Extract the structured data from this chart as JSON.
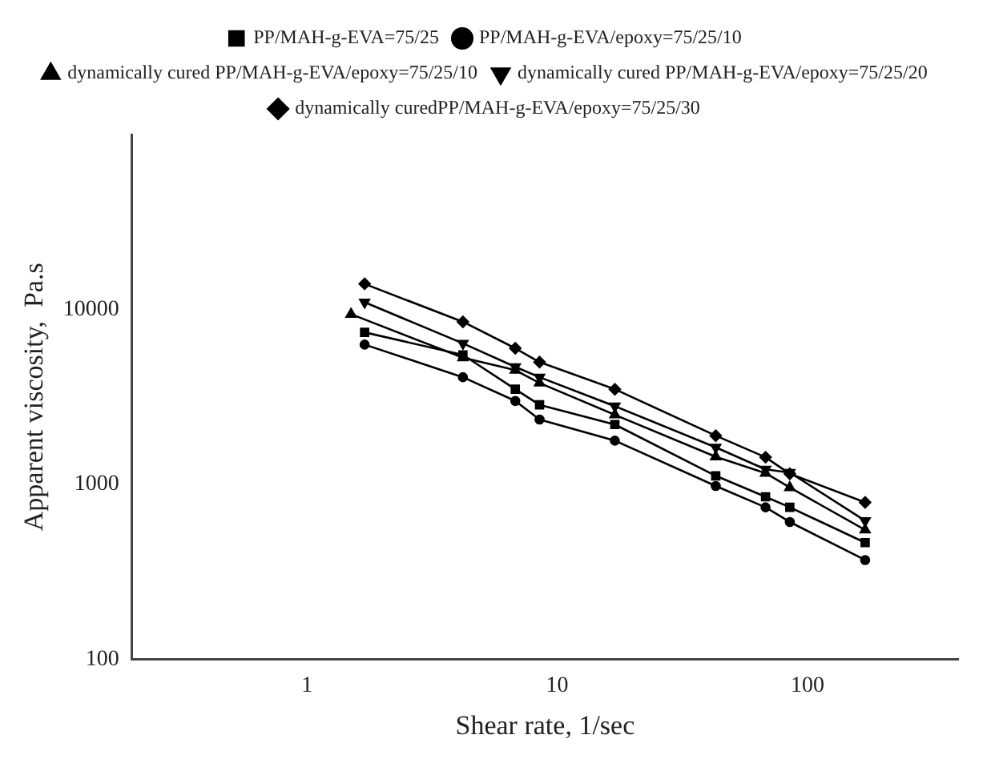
{
  "chart_data": {
    "type": "line",
    "xlabel": "Shear rate, 1/sec",
    "ylabel": "Apparent viscosity,  Pa.s",
    "log": "xy",
    "grid": false,
    "legend": "top",
    "line_style": "solid",
    "xlim": [
      0.2,
      400
    ],
    "xticks": [
      1,
      10,
      100
    ],
    "ylim": [
      100,
      100000
    ],
    "yticks": [
      100,
      1000,
      10000
    ],
    "series": [
      {
        "name": "PP/MAH-g-EVA=75/25",
        "color": "#000000",
        "marker": "square",
        "x": [
          1.7,
          4.2,
          6.8,
          8.5,
          17,
          43,
          68,
          85,
          170
        ],
        "values": [
          7400,
          5500,
          3500,
          2850,
          2200,
          1120,
          850,
          740,
          465
        ]
      },
      {
        "name": "PP/MAH-g-EVA/epoxy=75/25/10",
        "color": "#000000",
        "marker": "circle",
        "x": [
          1.7,
          4.2,
          6.8,
          8.5,
          17,
          43,
          68,
          85,
          170
        ],
        "values": [
          6300,
          4100,
          3000,
          2350,
          1780,
          980,
          740,
          610,
          370
        ]
      },
      {
        "name": "dynamically cured PP/MAH-g-EVA/epoxy=75/25/10",
        "color": "#000000",
        "marker": "triangle",
        "x": [
          1.5,
          4.2,
          6.8,
          8.5,
          17,
          43,
          68,
          85,
          170
        ],
        "values": [
          9400,
          5300,
          4500,
          3800,
          2500,
          1440,
          1160,
          960,
          550
        ]
      },
      {
        "name": "dynamically cured PP/MAH-g-EVA/epoxy=75/25/20",
        "color": "#000000",
        "marker": "triangle-down",
        "x": [
          1.7,
          4.2,
          6.8,
          8.5,
          17,
          43,
          68,
          85,
          170
        ],
        "values": [
          11000,
          6400,
          4700,
          4100,
          2800,
          1630,
          1220,
          1170,
          620
        ]
      },
      {
        "name": "dynamically curedPP/MAH-g-EVA/epoxy=75/25/30",
        "color": "#000000",
        "marker": "diamond",
        "x": [
          1.7,
          4.2,
          6.8,
          8.5,
          17,
          43,
          68,
          85,
          170
        ],
        "values": [
          14000,
          8500,
          6000,
          5000,
          3500,
          1900,
          1430,
          1150,
          790
        ]
      }
    ]
  }
}
